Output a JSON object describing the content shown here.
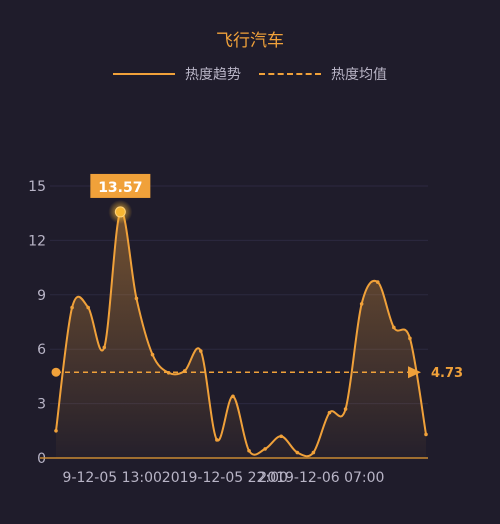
{
  "title": "飞行汽车",
  "legend": {
    "trend_label": "热度趋势",
    "avg_label": "热度均值"
  },
  "colors": {
    "accent": "#f0a13a",
    "background": "#1f1c2b",
    "axis_text": "#b8b4c6"
  },
  "chart_data": {
    "type": "area",
    "title": "飞行汽车",
    "x_tick_labels": [
      "9-12-05 13:00",
      "2019-12-05 22:00",
      "2019-12-06 07:00"
    ],
    "ylim": [
      0,
      15
    ],
    "yticks": [
      "0",
      "3",
      "6",
      "9",
      "12",
      "15"
    ],
    "grid": true,
    "legend_position": "top",
    "series": [
      {
        "name": "热度趋势",
        "values": [
          1.5,
          8.3,
          8.3,
          6.1,
          13.57,
          8.8,
          5.7,
          4.7,
          4.8,
          5.9,
          1.0,
          3.4,
          0.4,
          0.5,
          1.2,
          0.3,
          0.3,
          2.5,
          2.7,
          8.5,
          9.7,
          7.2,
          6.6,
          1.3
        ]
      }
    ],
    "max_point": {
      "label": "13.57",
      "value": 13.57,
      "index": 4
    },
    "average": {
      "label": "4.73",
      "value": 4.73
    }
  }
}
